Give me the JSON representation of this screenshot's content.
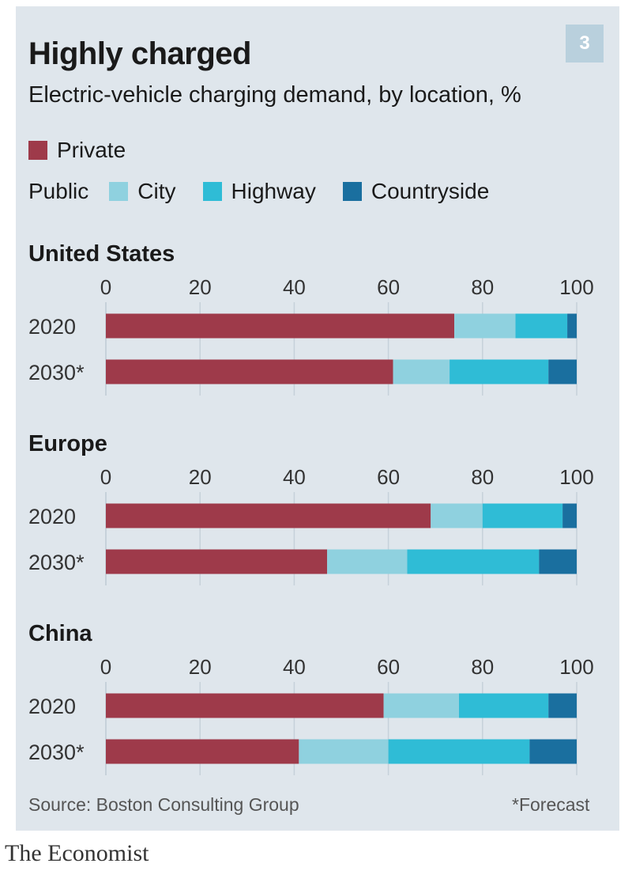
{
  "header": {
    "title": "Highly charged",
    "subtitle": "Electric-vehicle charging demand, by location, %",
    "chart_number": "3"
  },
  "legend": {
    "private_label": "Private",
    "public_label": "Public",
    "public_items": [
      "City",
      "Highway",
      "Countryside"
    ]
  },
  "colors": {
    "Private": "#9e3a4a",
    "City": "#8fd1df",
    "Highway": "#2fbcd6",
    "Countryside": "#1a6f9f",
    "panel": "#dfe6ec",
    "grid": "#c6d1da"
  },
  "chart_data": [
    {
      "type": "bar",
      "orientation": "horizontal",
      "stacked": true,
      "title": "United States",
      "categories": [
        "2020",
        "2030*"
      ],
      "series": [
        {
          "name": "Private",
          "values": [
            74,
            61
          ]
        },
        {
          "name": "City",
          "values": [
            13,
            12
          ]
        },
        {
          "name": "Highway",
          "values": [
            11,
            21
          ]
        },
        {
          "name": "Countryside",
          "values": [
            2,
            6
          ]
        }
      ],
      "xlim": [
        0,
        100
      ],
      "xticks": [
        "0",
        "20",
        "40",
        "60",
        "80",
        "100"
      ],
      "grid": true
    },
    {
      "type": "bar",
      "orientation": "horizontal",
      "stacked": true,
      "title": "Europe",
      "categories": [
        "2020",
        "2030*"
      ],
      "series": [
        {
          "name": "Private",
          "values": [
            69,
            47
          ]
        },
        {
          "name": "City",
          "values": [
            11,
            17
          ]
        },
        {
          "name": "Highway",
          "values": [
            17,
            28
          ]
        },
        {
          "name": "Countryside",
          "values": [
            3,
            8
          ]
        }
      ],
      "xlim": [
        0,
        100
      ],
      "xticks": [
        "0",
        "20",
        "40",
        "60",
        "80",
        "100"
      ],
      "grid": true
    },
    {
      "type": "bar",
      "orientation": "horizontal",
      "stacked": true,
      "title": "China",
      "categories": [
        "2020",
        "2030*"
      ],
      "series": [
        {
          "name": "Private",
          "values": [
            59,
            41
          ]
        },
        {
          "name": "City",
          "values": [
            16,
            19
          ]
        },
        {
          "name": "Highway",
          "values": [
            19,
            30
          ]
        },
        {
          "name": "Countryside",
          "values": [
            6,
            10
          ]
        }
      ],
      "xlim": [
        0,
        100
      ],
      "xticks": [
        "0",
        "20",
        "40",
        "60",
        "80",
        "100"
      ],
      "grid": true
    }
  ],
  "footer": {
    "source": "Source: Boston Consulting Group",
    "footnote": "*Forecast",
    "brand": "The Economist"
  }
}
